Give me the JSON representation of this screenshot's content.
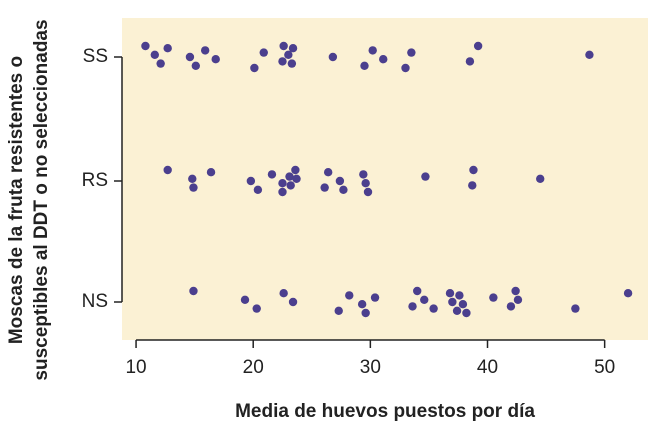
{
  "chart_data": {
    "type": "strip",
    "x_label": "Media de huevos puestos por día",
    "y_label": [
      "Moscas de la fruta resistentes o",
      "susceptibles al DDT o no seleccionadas"
    ],
    "categories": [
      "SS",
      "RS",
      "NS"
    ],
    "values": [
      [
        10.8,
        11.6,
        12.1,
        12.7,
        14.6,
        15.1,
        15.9,
        16.8,
        20.1,
        20.9,
        22.5,
        22.6,
        23.0,
        23.3,
        23.4,
        26.8,
        29.5,
        30.2,
        31.1,
        33.0,
        33.5,
        38.5,
        39.2,
        48.7
      ],
      [
        12.7,
        14.8,
        14.9,
        16.4,
        19.8,
        20.4,
        21.6,
        22.5,
        22.5,
        23.1,
        23.2,
        23.6,
        23.7,
        26.1,
        26.4,
        27.4,
        27.7,
        29.4,
        29.6,
        29.8,
        34.7,
        38.7,
        38.8,
        44.5
      ],
      [
        14.9,
        19.3,
        20.3,
        22.6,
        23.4,
        27.3,
        28.2,
        29.3,
        29.6,
        30.4,
        33.6,
        34.0,
        34.6,
        35.4,
        36.8,
        37.0,
        37.4,
        37.6,
        37.9,
        38.2,
        40.5,
        42.0,
        42.4,
        42.6,
        47.5,
        52.0
      ]
    ],
    "color": "#4b3f8e",
    "background": "#fbf1d4",
    "xlim": [
      8.8,
      53.7
    ],
    "xticks": [
      10,
      20,
      30,
      40,
      50
    ]
  }
}
